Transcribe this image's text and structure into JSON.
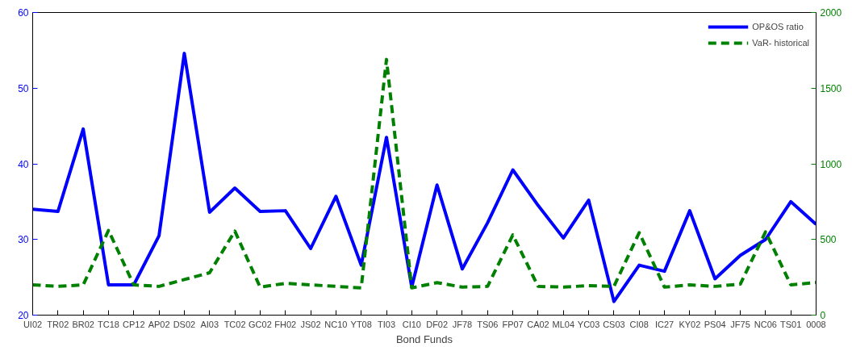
{
  "chart_data": {
    "type": "line",
    "xlabel": "Bond Funds",
    "categories": [
      "UI02",
      "TR02",
      "BR02",
      "TC18",
      "CP12",
      "AP02",
      "DS02",
      "AI03",
      "TC02",
      "GC02",
      "FH02",
      "JS02",
      "NC10",
      "YT08",
      "TI03",
      "CI10",
      "DF02",
      "JF78",
      "TS06",
      "FP07",
      "CA02",
      "ML04",
      "YC03",
      "CS03",
      "CI08",
      "IC27",
      "KY02",
      "PS04",
      "JF75",
      "NC06",
      "TS01",
      "0008"
    ],
    "series": [
      {
        "name": "OP&OS ratio",
        "color": "#0000ff",
        "line_style": "solid",
        "values": [
          34.0,
          33.7,
          44.6,
          24.0,
          24.0,
          30.5,
          54.6,
          33.6,
          36.8,
          33.7,
          33.8,
          28.8,
          35.7,
          26.6,
          43.5,
          23.7,
          37.2,
          26.1,
          32.2,
          39.2,
          34.5,
          30.2,
          35.2,
          21.8,
          26.6,
          25.8,
          33.8,
          24.8,
          27.9,
          30.0,
          35.0,
          32.0
        ]
      },
      {
        "name": "VaR- historical",
        "color": "#008000",
        "line_style": "dashed",
        "axis": "y2",
        "values": [
          200,
          190,
          200,
          560,
          200,
          190,
          235,
          280,
          555,
          185,
          210,
          200,
          190,
          180,
          1690,
          180,
          215,
          185,
          190,
          530,
          190,
          185,
          195,
          190,
          545,
          185,
          200,
          190,
          205,
          550,
          200,
          215
        ]
      }
    ],
    "ylim": [
      20,
      60
    ],
    "yticks": [
      20,
      30,
      40,
      50,
      60
    ],
    "y2lim": [
      0,
      2000
    ],
    "y2ticks": [
      0,
      500,
      1000,
      1500,
      2000
    ],
    "grid": false,
    "legend": "top right"
  }
}
